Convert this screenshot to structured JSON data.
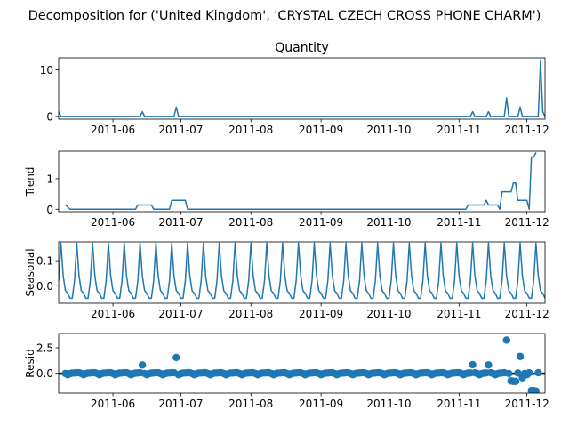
{
  "figure_title": "Decomposition for ('United Kingdom', 'CRYSTAL CZECH CROSS PHONE CHARM')",
  "series_color": "#1f77b4",
  "chart_data": [
    {
      "type": "line",
      "title": "Quantity",
      "ylabel": "",
      "ylim": [
        -0.6,
        12.6
      ],
      "yticks": [
        0,
        10
      ],
      "xticks": [
        "2011-06",
        "2011-07",
        "2011-08",
        "2011-09",
        "2011-10",
        "2011-11",
        "2011-12"
      ],
      "xlim": [
        "2011-05-08",
        "2011-12-09"
      ],
      "points": [
        {
          "x": "2011-05-08",
          "y": 1
        },
        {
          "x": "2011-05-09",
          "y": 0
        },
        {
          "x": "2011-06-13",
          "y": 0
        },
        {
          "x": "2011-06-14",
          "y": 1
        },
        {
          "x": "2011-06-15",
          "y": 0
        },
        {
          "x": "2011-06-28",
          "y": 0
        },
        {
          "x": "2011-06-29",
          "y": 2
        },
        {
          "x": "2011-06-30",
          "y": 0
        },
        {
          "x": "2011-11-06",
          "y": 0
        },
        {
          "x": "2011-11-07",
          "y": 1
        },
        {
          "x": "2011-11-08",
          "y": 0
        },
        {
          "x": "2011-11-13",
          "y": 0
        },
        {
          "x": "2011-11-14",
          "y": 1
        },
        {
          "x": "2011-11-15",
          "y": 0
        },
        {
          "x": "2011-11-21",
          "y": 0
        },
        {
          "x": "2011-11-22",
          "y": 4
        },
        {
          "x": "2011-11-23",
          "y": 0
        },
        {
          "x": "2011-11-27",
          "y": 0
        },
        {
          "x": "2011-11-28",
          "y": 2
        },
        {
          "x": "2011-11-29",
          "y": 0
        },
        {
          "x": "2011-12-06",
          "y": 0
        },
        {
          "x": "2011-12-07",
          "y": 12
        },
        {
          "x": "2011-12-08",
          "y": 1
        },
        {
          "x": "2011-12-09",
          "y": 0
        }
      ]
    },
    {
      "type": "line",
      "title": "",
      "ylabel": "Trend",
      "ylim": [
        -0.08,
        1.9
      ],
      "yticks": [
        0,
        1
      ],
      "xticks": [
        "2011-06",
        "2011-07",
        "2011-08",
        "2011-09",
        "2011-10",
        "2011-11",
        "2011-12"
      ],
      "xlim": [
        "2011-05-08",
        "2011-12-09"
      ],
      "points": [
        {
          "x": "2011-05-11",
          "y": 0.14
        },
        {
          "x": "2011-05-13",
          "y": 0
        },
        {
          "x": "2011-06-11",
          "y": 0
        },
        {
          "x": "2011-06-12",
          "y": 0.14
        },
        {
          "x": "2011-06-18",
          "y": 0.14
        },
        {
          "x": "2011-06-19",
          "y": 0
        },
        {
          "x": "2011-06-26",
          "y": 0
        },
        {
          "x": "2011-06-27",
          "y": 0.29
        },
        {
          "x": "2011-07-03",
          "y": 0.29
        },
        {
          "x": "2011-07-04",
          "y": 0
        },
        {
          "x": "2011-11-04",
          "y": 0
        },
        {
          "x": "2011-11-05",
          "y": 0.14
        },
        {
          "x": "2011-11-12",
          "y": 0.14
        },
        {
          "x": "2011-11-13",
          "y": 0.29
        },
        {
          "x": "2011-11-14",
          "y": 0.14
        },
        {
          "x": "2011-11-18",
          "y": 0.14
        },
        {
          "x": "2011-11-19",
          "y": 0
        },
        {
          "x": "2011-11-20",
          "y": 0.57
        },
        {
          "x": "2011-11-24",
          "y": 0.57
        },
        {
          "x": "2011-11-25",
          "y": 0.86
        },
        {
          "x": "2011-11-26",
          "y": 0.86
        },
        {
          "x": "2011-11-27",
          "y": 0.29
        },
        {
          "x": "2011-12-01",
          "y": 0.29
        },
        {
          "x": "2011-12-02",
          "y": 0
        },
        {
          "x": "2011-12-03",
          "y": 1.71
        },
        {
          "x": "2011-12-04",
          "y": 1.71
        },
        {
          "x": "2011-12-05",
          "y": 1.86
        }
      ]
    },
    {
      "type": "line",
      "title": "",
      "ylabel": "Seasonal",
      "ylim": [
        -0.07,
        0.175
      ],
      "yticks": [
        0.0,
        0.1
      ],
      "xticks": [
        "2011-06",
        "2011-07",
        "2011-08",
        "2011-09",
        "2011-10",
        "2011-11",
        "2011-12"
      ],
      "xlim": [
        "2011-05-08",
        "2011-12-09"
      ],
      "weekly_pattern": [
        0.02,
        0.17,
        0.04,
        -0.02,
        -0.03,
        -0.05,
        -0.05
      ],
      "start": "2011-05-08",
      "end": "2011-12-09"
    },
    {
      "type": "scatter",
      "title": "",
      "ylabel": "Resid",
      "ylim": [
        -1.95,
        3.9
      ],
      "yticks": [
        0.0,
        2.5
      ],
      "xticks": [
        "2011-06",
        "2011-07",
        "2011-08",
        "2011-09",
        "2011-10",
        "2011-11",
        "2011-12"
      ],
      "xlim": [
        "2011-05-08",
        "2011-12-09"
      ],
      "baseline": 0,
      "baseline_cycle": [
        -0.02,
        -0.14,
        -0.04,
        0.02,
        0.03,
        0.05,
        0.05
      ],
      "start": "2011-05-11",
      "end": "2011-12-06",
      "outliers": [
        {
          "x": "2011-06-14",
          "y": 0.82
        },
        {
          "x": "2011-06-29",
          "y": 1.55
        },
        {
          "x": "2011-11-07",
          "y": 0.85
        },
        {
          "x": "2011-11-14",
          "y": 0.82
        },
        {
          "x": "2011-11-22",
          "y": 3.25
        },
        {
          "x": "2011-11-24",
          "y": -0.75
        },
        {
          "x": "2011-11-25",
          "y": -0.8
        },
        {
          "x": "2011-11-26",
          "y": -0.8
        },
        {
          "x": "2011-11-28",
          "y": 1.65
        },
        {
          "x": "2011-11-29",
          "y": -0.45
        },
        {
          "x": "2011-12-02",
          "y": 0.05
        },
        {
          "x": "2011-12-03",
          "y": -1.7
        },
        {
          "x": "2011-12-04",
          "y": -1.7
        },
        {
          "x": "2011-12-05",
          "y": -1.75
        }
      ]
    }
  ]
}
